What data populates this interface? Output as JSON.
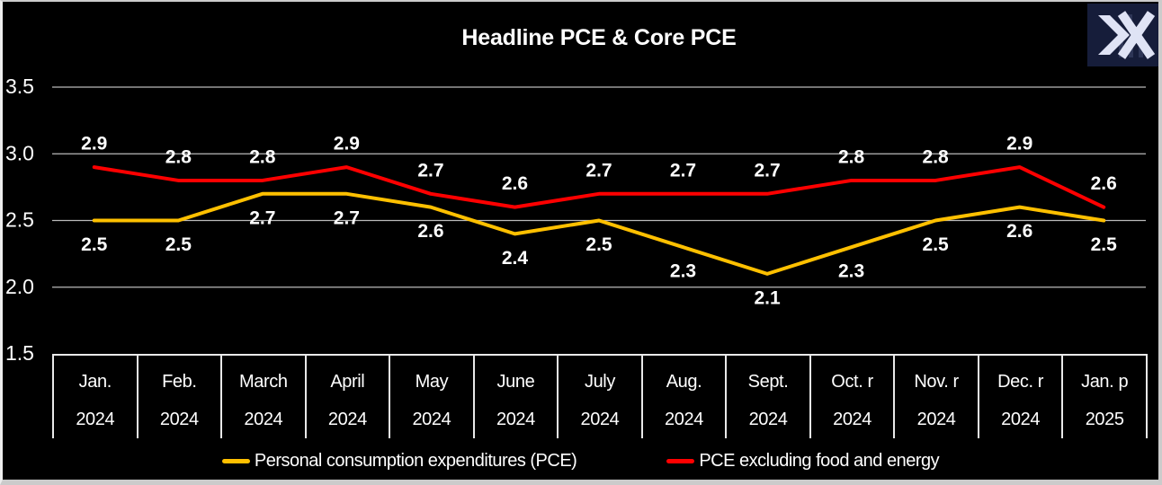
{
  "title": "Headline PCE & Core PCE",
  "logo": {
    "icon": "double-chevron-x",
    "background": "#161d3a",
    "foreground": "#dfe3f5",
    "accent_bars": "#4a5278"
  },
  "colors": {
    "background": "#000000",
    "grid": "#cfcfcf",
    "text": "#ffffff",
    "pce_line": "#FFC000",
    "core_line": "#FF0000",
    "frame": "#cbcbcb"
  },
  "chart_data": {
    "type": "line",
    "title": "Headline PCE & Core PCE",
    "categories": [
      {
        "month": "Jan.",
        "year": "2024"
      },
      {
        "month": "Feb.",
        "year": "2024"
      },
      {
        "month": "March",
        "year": "2024"
      },
      {
        "month": "April",
        "year": "2024"
      },
      {
        "month": "May",
        "year": "2024"
      },
      {
        "month": "June",
        "year": "2024"
      },
      {
        "month": "July",
        "year": "2024"
      },
      {
        "month": "Aug.",
        "year": "2024"
      },
      {
        "month": "Sept.",
        "year": "2024"
      },
      {
        "month": "Oct. r",
        "year": "2024"
      },
      {
        "month": "Nov. r",
        "year": "2024"
      },
      {
        "month": "Dec. r",
        "year": "2024"
      },
      {
        "month": "Jan. p",
        "year": "2025"
      }
    ],
    "series": [
      {
        "name": "Personal consumption expenditures (PCE)",
        "color": "#FFC000",
        "label_side": "below",
        "values": [
          2.5,
          2.5,
          2.7,
          2.7,
          2.6,
          2.4,
          2.5,
          2.3,
          2.1,
          2.3,
          2.5,
          2.6,
          2.5
        ]
      },
      {
        "name": "PCE excluding food and energy",
        "color": "#FF0000",
        "label_side": "above",
        "values": [
          2.9,
          2.8,
          2.8,
          2.9,
          2.7,
          2.6,
          2.7,
          2.7,
          2.7,
          2.8,
          2.8,
          2.9,
          2.6
        ]
      }
    ],
    "ylim": [
      1.5,
      3.5
    ],
    "yticks": [
      "3.5",
      "3.0",
      "2.5",
      "2.0",
      "1.5"
    ],
    "grid": true,
    "data_labels": true,
    "legend_position": "bottom"
  }
}
